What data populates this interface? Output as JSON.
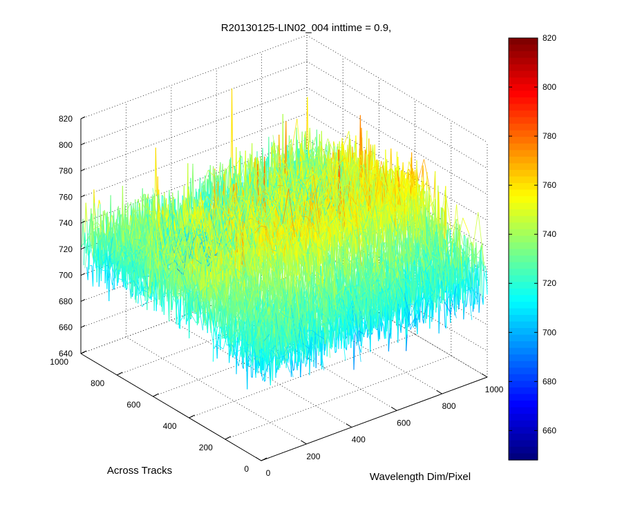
{
  "chart_data": {
    "type": "surface",
    "title": "R20130125-LIN02_004 inttime = 0.9,",
    "xlabel": "Wavelength Dim/Pixel",
    "ylabel": "Across Tracks",
    "x_ticks": [
      "0",
      "200",
      "400",
      "600",
      "800",
      "1000"
    ],
    "y_ticks": [
      "0",
      "200",
      "400",
      "600",
      "800",
      "1000"
    ],
    "z_ticks": [
      "640",
      "660",
      "680",
      "700",
      "720",
      "740",
      "760",
      "780",
      "800",
      "820"
    ],
    "xlim": [
      0,
      1000
    ],
    "ylim": [
      0,
      1000
    ],
    "zlim": [
      640,
      820
    ],
    "colorbar": {
      "ticks": [
        "660",
        "680",
        "700",
        "720",
        "740",
        "760",
        "780",
        "800",
        "820"
      ],
      "range": [
        648,
        820
      ],
      "colormap": "jet"
    },
    "grid": true,
    "surface_profile": {
      "description_free": false,
      "baseline_z": 720,
      "noise_amplitude": 22,
      "ridge_pixel_range": [
        400,
        1000
      ],
      "ridge_z": 745,
      "peak_z": 818
    }
  }
}
